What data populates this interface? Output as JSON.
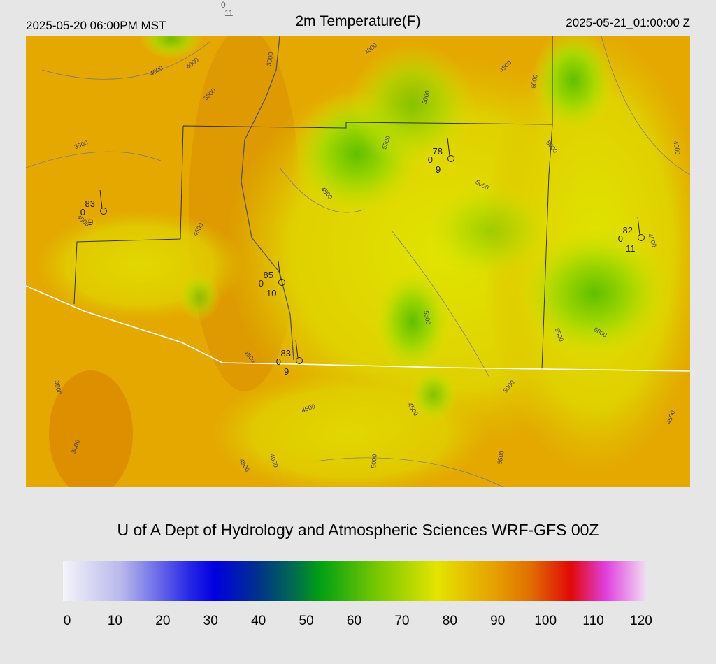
{
  "header": {
    "left": "2025-05-20 06:00PM MST",
    "title": "2m Temperature(F)",
    "right": "2025-05-21_01:00:00 Z",
    "corner": [
      "0",
      "11"
    ]
  },
  "contours": {
    "labels": [
      "4000",
      "4000",
      "3000",
      "3500",
      "4000",
      "4500",
      "5000",
      "5000",
      "3500",
      "5500",
      "5000",
      "4000",
      "4500",
      "5000",
      "4000",
      "4500",
      "4500",
      "5500",
      "5500",
      "6000",
      "4500",
      "3500",
      "5000",
      "4500",
      "4500",
      "4500",
      "3000",
      "4000",
      "4500",
      "5000",
      "5500"
    ]
  },
  "stations": [
    {
      "temp": "83",
      "left": "0",
      "below": "9"
    },
    {
      "temp": "78",
      "left": "0",
      "below": "9"
    },
    {
      "temp": "82",
      "left": "0",
      "below": "11"
    },
    {
      "temp": "85",
      "left": "0",
      "below": "10"
    },
    {
      "temp": "83",
      "left": "0",
      "below": "9"
    }
  ],
  "credit": "U of A Dept of Hydrology and Atmospheric Sciences WRF-GFS 00Z",
  "colorbar": {
    "range": [
      0,
      120
    ],
    "ticks": [
      0,
      10,
      20,
      30,
      40,
      50,
      60,
      70,
      80,
      90,
      100,
      110,
      120
    ]
  }
}
